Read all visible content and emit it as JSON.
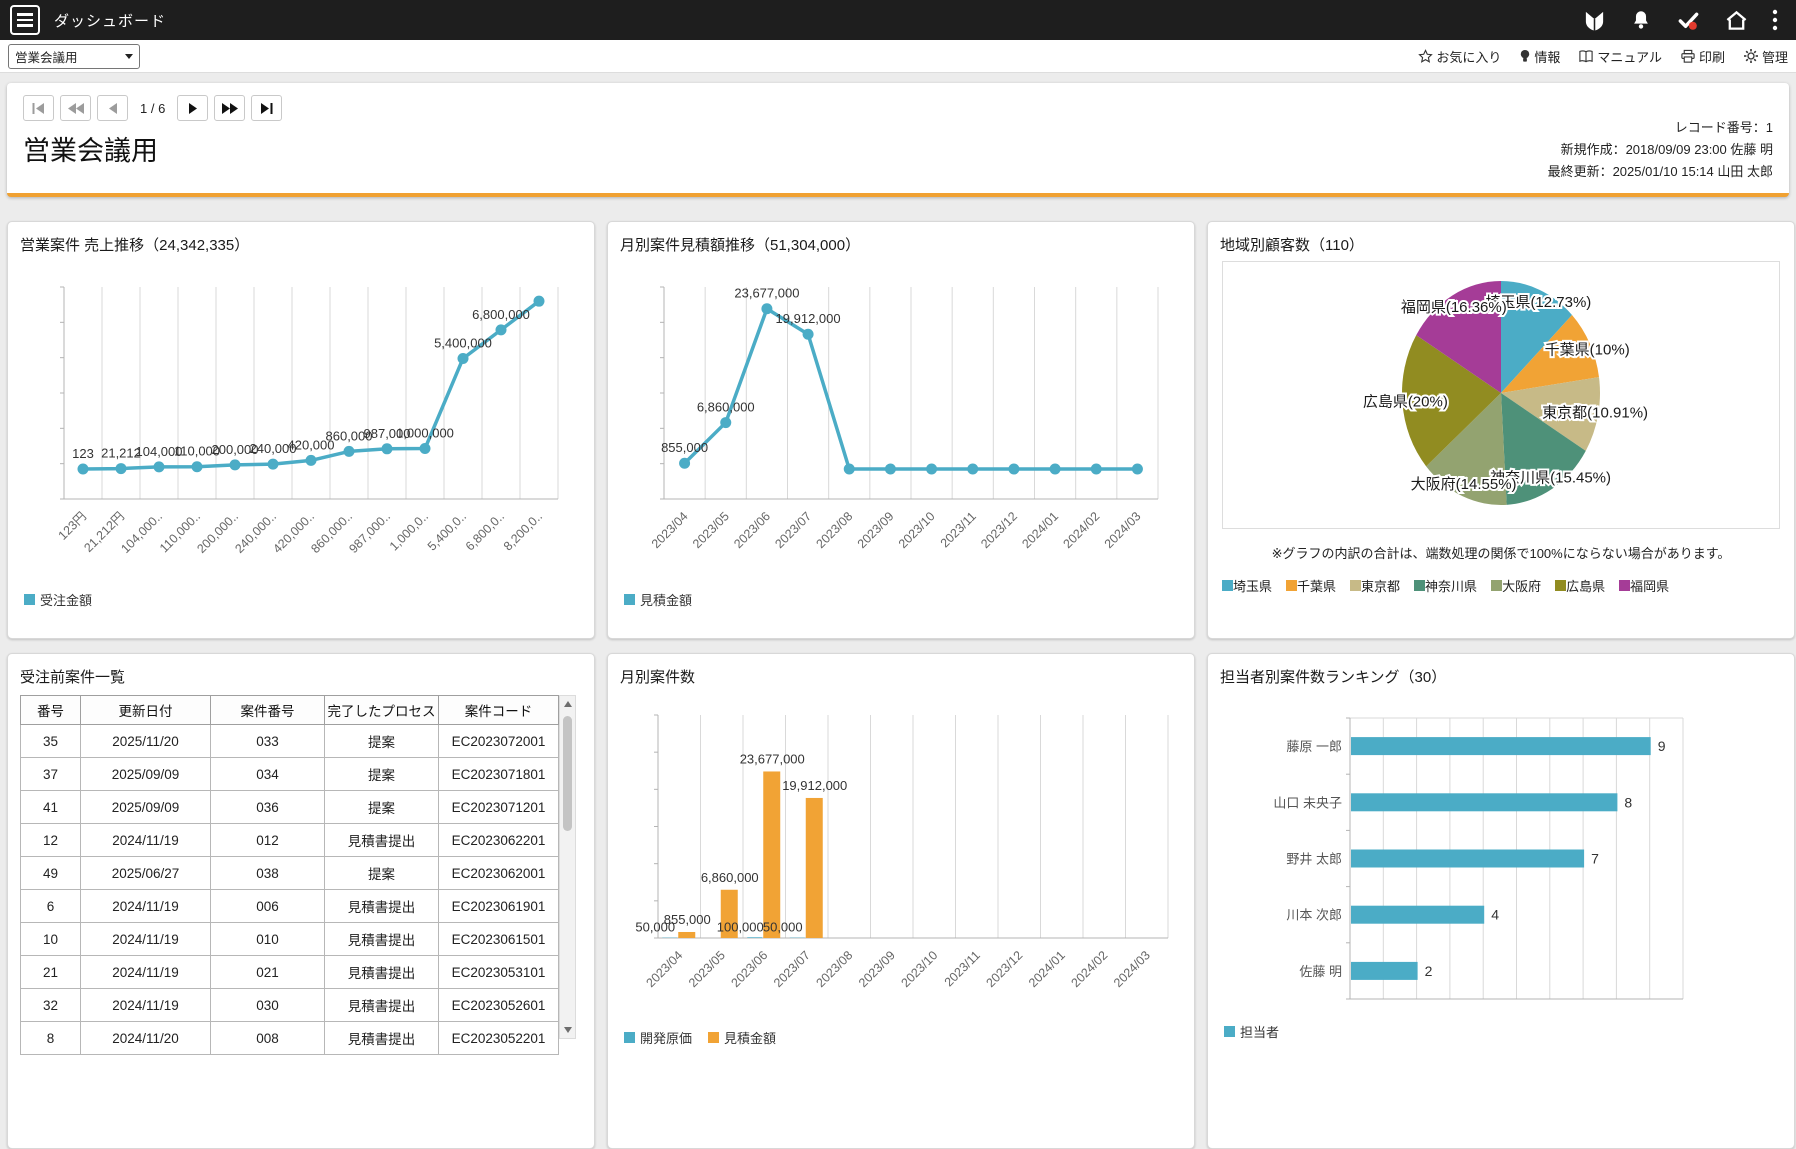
{
  "topbar": {
    "title": "ダッシュボード",
    "icons": [
      "menu",
      "beginner-mark",
      "bell",
      "check-badge",
      "home",
      "kebab-menu"
    ],
    "badge_color": "#e23b2e"
  },
  "toolbar": {
    "select_value": "営業会議用",
    "links": [
      {
        "icon": "star",
        "label": "お気に入り"
      },
      {
        "icon": "bulb",
        "label": "情報"
      },
      {
        "icon": "book",
        "label": "マニュアル"
      },
      {
        "icon": "printer",
        "label": "印刷"
      },
      {
        "icon": "gear",
        "label": "管理"
      }
    ]
  },
  "nav": {
    "position": "1 / 6"
  },
  "record": {
    "title": "営業会議用",
    "number": "レコード番号：1",
    "created": "新規作成：2018/09/09 23:00 佐藤 明",
    "updated": "最終更新：2025/01/10 15:14 山田 太郎"
  },
  "colors": {
    "teal": "#4BACC6",
    "orange": "#F1A335",
    "accent": "#F0A132"
  },
  "panels": {
    "sales_trend": {
      "title": "営業案件 売上推移（24,342,335）",
      "legend": "受注金額"
    },
    "estimate_trend": {
      "title": "月別案件見積額推移（51,304,000）",
      "legend": "見積金額"
    },
    "region_pie": {
      "title": "地域別顧客数（110）",
      "note": "※グラフの内訳の合計は、端数処理の関係で100%にならない場合があります。"
    },
    "pre_orders": {
      "title": "受注前案件一覧",
      "headers": [
        "番号",
        "更新日付",
        "案件番号",
        "完了したプロセス",
        "案件コード"
      ],
      "rows": [
        [
          "35",
          "2025/11/20",
          "033",
          "提案",
          "EC2023072001"
        ],
        [
          "37",
          "2025/09/09",
          "034",
          "提案",
          "EC2023071801"
        ],
        [
          "41",
          "2025/09/09",
          "036",
          "提案",
          "EC2023071201"
        ],
        [
          "12",
          "2024/11/19",
          "012",
          "見積書提出",
          "EC2023062201"
        ],
        [
          "49",
          "2025/06/27",
          "038",
          "提案",
          "EC2023062001"
        ],
        [
          "6",
          "2024/11/19",
          "006",
          "見積書提出",
          "EC2023061901"
        ],
        [
          "10",
          "2024/11/19",
          "010",
          "見積書提出",
          "EC2023061501"
        ],
        [
          "21",
          "2024/11/19",
          "021",
          "見積書提出",
          "EC2023053101"
        ],
        [
          "32",
          "2024/11/19",
          "030",
          "見積書提出",
          "EC2023052601"
        ],
        [
          "8",
          "2024/11/20",
          "008",
          "見積書提出",
          "EC2023052201"
        ]
      ]
    },
    "monthly_count": {
      "title": "月別案件数",
      "legend": [
        "開発原価",
        "見積金額"
      ]
    },
    "ranking": {
      "title": "担当者別案件数ランキング（30）",
      "legend": "担当者"
    }
  },
  "chart_data": [
    {
      "id": "sales_trend",
      "type": "line",
      "title": "営業案件 売上推移（24,342,335）",
      "series_name": "受注金額",
      "color": "#4BACC6",
      "categories": [
        "123円",
        "21,212円",
        "104,000..",
        "110,000..",
        "200,000..",
        "240,000..",
        "420,000..",
        "860,000..",
        "987,000..",
        "1,000,0..",
        "5,400,0..",
        "6,800,0..",
        "8,200,0.."
      ],
      "values": [
        123,
        21212,
        104000,
        110000,
        200000,
        240000,
        420000,
        860000,
        987000,
        1000000,
        5400000,
        6800000,
        8200000
      ],
      "point_labels": [
        "123",
        "21,212",
        "104,000",
        "110,000",
        "200,000",
        "240,000",
        "420,000",
        "860,000",
        "987,000",
        "1,000,000",
        "5,400,000",
        "6,800,000",
        ""
      ],
      "ymax": 8600000,
      "grid": true,
      "legend_position": "bottom-left"
    },
    {
      "id": "estimate_trend",
      "type": "line",
      "title": "月別案件見積額推移（51,304,000）",
      "series_name": "見積金額",
      "color": "#4BACC6",
      "categories": [
        "2023/04",
        "2023/05",
        "2023/06",
        "2023/07",
        "2023/08",
        "2023/09",
        "2023/10",
        "2023/11",
        "2023/12",
        "2024/01",
        "2024/02",
        "2024/03"
      ],
      "values": [
        855000,
        6860000,
        23677000,
        19912000,
        0,
        0,
        0,
        0,
        0,
        0,
        0,
        0
      ],
      "point_labels": [
        "855,000",
        "6,860,000",
        "23,677,000",
        "19,912,000",
        "",
        "",
        "",
        "",
        "",
        "",
        "",
        ""
      ],
      "ymax": 26000000,
      "grid": true,
      "legend_position": "bottom-left"
    },
    {
      "id": "region_pie",
      "type": "pie",
      "title": "地域別顧客数（110）",
      "total": 110,
      "slices": [
        {
          "label": "埼玉県",
          "pct": 12.73,
          "count": 14,
          "color": "#4BACC6",
          "display": "埼玉県(12.73%)"
        },
        {
          "label": "千葉県",
          "pct": 10.0,
          "count": 11,
          "color": "#F1A335",
          "display": "千葉県(10%)"
        },
        {
          "label": "東京都",
          "pct": 10.91,
          "count": 12,
          "color": "#C7BA87",
          "display": "東京都(10.91%)"
        },
        {
          "label": "神奈川県",
          "pct": 15.45,
          "count": 17,
          "color": "#4E9179",
          "display": "神奈川県(15.45%)"
        },
        {
          "label": "大阪府",
          "pct": 14.55,
          "count": 16,
          "color": "#93A370",
          "display": "大阪府(14.55%)"
        },
        {
          "label": "広島県",
          "pct": 20.0,
          "count": 22,
          "color": "#918C21",
          "display": "広島県(20%)"
        },
        {
          "label": "福岡県",
          "pct": 16.36,
          "count": 18,
          "color": "#A53C97",
          "display": "福岡県(16.36%)"
        }
      ],
      "legend_position": "bottom"
    },
    {
      "id": "monthly_count",
      "type": "bar",
      "title": "月別案件数",
      "categories": [
        "2023/04",
        "2023/05",
        "2023/06",
        "2023/07",
        "2023/08",
        "2023/09",
        "2023/10",
        "2023/11",
        "2023/12",
        "2024/01",
        "2024/02",
        "2024/03"
      ],
      "series": [
        {
          "name": "開発原価",
          "color": "#4BACC6",
          "values": [
            50000,
            0,
            100000,
            50000,
            0,
            0,
            0,
            0,
            0,
            0,
            0,
            0
          ],
          "labels": [
            "50,000",
            "",
            "100,000",
            "50,000",
            "",
            "",
            "",
            "",
            "",
            "",
            "",
            ""
          ]
        },
        {
          "name": "見積金額",
          "color": "#F1A335",
          "values": [
            855000,
            6860000,
            23677000,
            19912000,
            0,
            0,
            0,
            0,
            0,
            0,
            0,
            0
          ],
          "labels": [
            "855,000",
            "6,860,000",
            "23,677,000",
            "19,912,000",
            "",
            "",
            "",
            "",
            "",
            "",
            "",
            ""
          ]
        }
      ],
      "ymax": 30000000,
      "grid": true,
      "legend_position": "bottom-left"
    },
    {
      "id": "ranking",
      "type": "hbar",
      "title": "担当者別案件数ランキング（30）",
      "series_name": "担当者",
      "color": "#4BACC6",
      "categories": [
        "藤原 一郎",
        "山口 未央子",
        "野井 太郎",
        "川本 次郎",
        "佐藤 明"
      ],
      "values": [
        9,
        8,
        7,
        4,
        2
      ],
      "xmax": 10,
      "grid": true,
      "legend_position": "bottom-left"
    }
  ]
}
